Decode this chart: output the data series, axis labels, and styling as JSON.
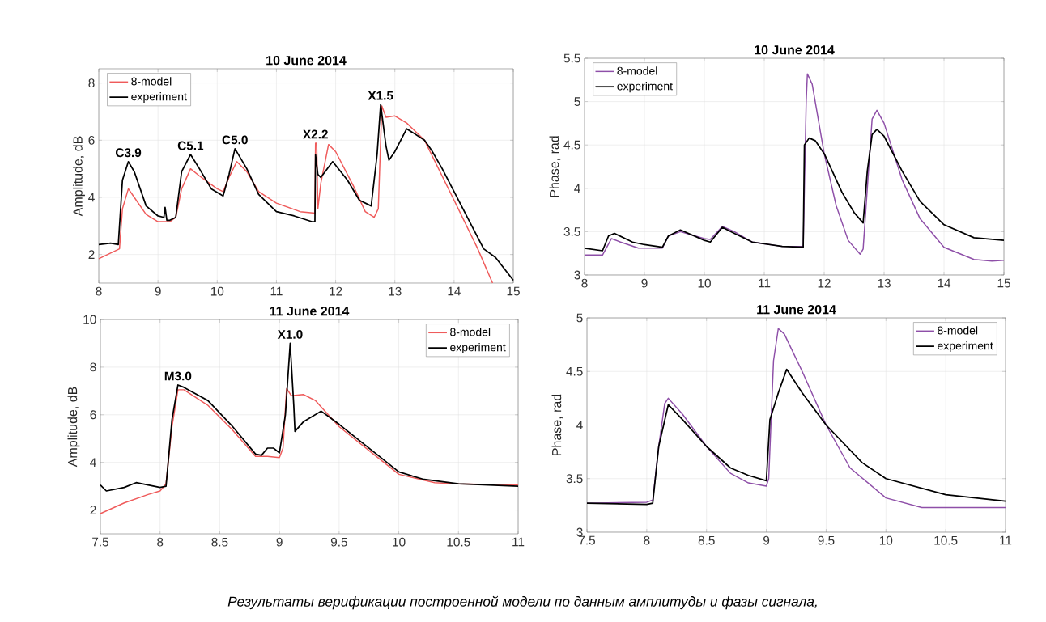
{
  "chart_data": [
    {
      "type": "line",
      "title": "10 June 2014",
      "ylabel": "Amplitude, dB",
      "xlim": [
        8,
        15
      ],
      "ylim": [
        1,
        8.5
      ],
      "xticks": [
        8,
        9,
        10,
        11,
        12,
        13,
        14,
        15
      ],
      "yticks": [
        2,
        4,
        6,
        8
      ],
      "grid": true,
      "legend": "top left",
      "series": [
        {
          "name": "8-model",
          "color": "#ef5b5b",
          "x": [
            8,
            8.35,
            8.4,
            8.5,
            8.6,
            8.8,
            9.0,
            9.2,
            9.3,
            9.4,
            9.55,
            9.7,
            10.0,
            10.1,
            10.2,
            10.33,
            10.5,
            10.7,
            11.0,
            11.4,
            11.65,
            11.66,
            11.68,
            11.7,
            11.75,
            11.88,
            12.0,
            12.3,
            12.5,
            12.65,
            12.72,
            12.78,
            12.85,
            13.0,
            13.2,
            13.5,
            14.0,
            14.4,
            14.65
          ],
          "values": [
            1.85,
            2.2,
            3.6,
            4.3,
            4.0,
            3.4,
            3.15,
            3.15,
            3.3,
            4.3,
            5.0,
            4.75,
            4.3,
            4.2,
            4.7,
            5.25,
            4.9,
            4.2,
            3.8,
            3.5,
            3.45,
            5.9,
            5.9,
            3.6,
            4.5,
            5.85,
            5.6,
            4.4,
            3.5,
            3.3,
            3.6,
            7.2,
            6.8,
            6.85,
            6.6,
            6.0,
            3.9,
            2.2,
            1.0
          ]
        },
        {
          "name": "experiment",
          "color": "#000000",
          "x": [
            8,
            8.2,
            8.33,
            8.4,
            8.5,
            8.6,
            8.8,
            9.0,
            9.1,
            9.12,
            9.15,
            9.2,
            9.3,
            9.4,
            9.55,
            9.7,
            9.9,
            10.1,
            10.2,
            10.3,
            10.5,
            10.7,
            11.0,
            11.3,
            11.6,
            11.65,
            11.66,
            11.7,
            11.75,
            11.95,
            12.2,
            12.4,
            12.6,
            12.7,
            12.76,
            12.85,
            12.9,
            13.0,
            13.2,
            13.5,
            13.62,
            13.8,
            14.0,
            14.3,
            14.5,
            14.7,
            15.0
          ],
          "values": [
            2.35,
            2.4,
            2.35,
            4.6,
            5.25,
            4.9,
            3.7,
            3.35,
            3.3,
            3.65,
            3.2,
            3.2,
            3.3,
            4.9,
            5.5,
            5.0,
            4.3,
            4.05,
            4.8,
            5.7,
            5.0,
            4.1,
            3.5,
            3.35,
            3.15,
            3.15,
            5.5,
            4.8,
            4.7,
            5.25,
            4.6,
            3.9,
            3.7,
            5.5,
            7.25,
            5.8,
            5.3,
            5.6,
            6.4,
            6.0,
            5.65,
            5.0,
            4.2,
            3.0,
            2.2,
            1.9,
            1.1
          ]
        }
      ],
      "annotations": [
        {
          "text": "C3.9",
          "x": 8.5,
          "y": 5.25
        },
        {
          "text": "C5.1",
          "x": 9.55,
          "y": 5.5
        },
        {
          "text": "C5.0",
          "x": 10.3,
          "y": 5.7
        },
        {
          "text": "X2.2",
          "x": 11.66,
          "y": 5.9
        },
        {
          "text": "X1.5",
          "x": 12.76,
          "y": 7.25
        },
        "Результаты верификации построенной модели по данным амплитуды и фазы сигнала,"
      ]
    },
    {
      "type": "line",
      "title": "10 June 2014",
      "ylabel": "Phase, rad",
      "xlim": [
        8,
        15
      ],
      "ylim": [
        3,
        5.5
      ],
      "xticks": [
        8,
        9,
        10,
        11,
        12,
        13,
        14,
        15
      ],
      "yticks": [
        3,
        3.5,
        4,
        4.5,
        5,
        5.5
      ],
      "grid": true,
      "legend": "top left",
      "series": [
        {
          "name": "8-model",
          "color": "#8e4fa8",
          "x": [
            8,
            8.3,
            8.45,
            8.6,
            8.9,
            9.3,
            9.4,
            9.6,
            10.0,
            10.1,
            10.3,
            10.5,
            10.8,
            11.3,
            11.65,
            11.7,
            11.72,
            11.8,
            12.0,
            12.2,
            12.4,
            12.6,
            12.65,
            12.72,
            12.8,
            12.88,
            13.0,
            13.3,
            13.6,
            14.0,
            14.5,
            14.8,
            15.0
          ],
          "values": [
            3.23,
            3.23,
            3.42,
            3.38,
            3.31,
            3.31,
            3.45,
            3.5,
            3.42,
            3.41,
            3.56,
            3.5,
            3.38,
            3.33,
            3.33,
            5.0,
            5.32,
            5.2,
            4.4,
            3.8,
            3.4,
            3.24,
            3.3,
            4.0,
            4.8,
            4.9,
            4.75,
            4.1,
            3.65,
            3.32,
            3.18,
            3.16,
            3.17
          ]
        },
        {
          "name": "experiment",
          "color": "#000000",
          "x": [
            8,
            8.3,
            8.4,
            8.5,
            8.8,
            9.0,
            9.3,
            9.4,
            9.6,
            10.0,
            10.1,
            10.3,
            10.5,
            10.8,
            11.3,
            11.65,
            11.67,
            11.75,
            11.85,
            12.0,
            12.3,
            12.5,
            12.65,
            12.72,
            12.8,
            12.88,
            13.0,
            13.3,
            13.6,
            14.0,
            14.5,
            15.0
          ],
          "values": [
            3.31,
            3.28,
            3.45,
            3.48,
            3.38,
            3.35,
            3.32,
            3.45,
            3.52,
            3.4,
            3.38,
            3.55,
            3.48,
            3.38,
            3.33,
            3.32,
            4.5,
            4.58,
            4.55,
            4.4,
            3.95,
            3.72,
            3.6,
            4.2,
            4.62,
            4.68,
            4.6,
            4.2,
            3.85,
            3.58,
            3.43,
            3.4
          ]
        }
      ]
    },
    {
      "type": "line",
      "title": "11 June 2014",
      "ylabel": "Amplitude, dB",
      "xlim": [
        7.5,
        11
      ],
      "ylim": [
        1,
        10
      ],
      "xticks": [
        7.5,
        8,
        8.5,
        9,
        9.5,
        10,
        10.5,
        11
      ],
      "yticks": [
        2,
        4,
        6,
        8,
        10
      ],
      "grid": true,
      "legend": "top right",
      "series": [
        {
          "name": "8-model",
          "color": "#ef5b5b",
          "x": [
            7.5,
            7.7,
            7.9,
            8.0,
            8.05,
            8.1,
            8.15,
            8.2,
            8.4,
            8.6,
            8.8,
            8.9,
            9.0,
            9.03,
            9.06,
            9.1,
            9.2,
            9.3,
            9.5,
            9.8,
            10.0,
            10.3,
            10.5,
            11.0
          ],
          "values": [
            1.85,
            2.3,
            2.65,
            2.8,
            3.1,
            5.5,
            7.05,
            7.05,
            6.4,
            5.4,
            4.25,
            4.25,
            4.2,
            4.6,
            7.1,
            6.8,
            6.85,
            6.6,
            5.5,
            4.3,
            3.5,
            3.15,
            3.1,
            3.05
          ]
        },
        {
          "name": "experiment",
          "color": "#000000",
          "x": [
            7.5,
            7.55,
            7.7,
            7.8,
            8.0,
            8.05,
            8.1,
            8.15,
            8.2,
            8.4,
            8.6,
            8.8,
            8.85,
            8.9,
            8.95,
            9.0,
            9.05,
            9.09,
            9.12,
            9.13,
            9.2,
            9.35,
            9.5,
            9.8,
            10.0,
            10.2,
            10.5,
            11.0
          ],
          "values": [
            3.05,
            2.8,
            2.95,
            3.15,
            2.95,
            3.0,
            5.8,
            7.25,
            7.15,
            6.6,
            5.55,
            4.35,
            4.3,
            4.6,
            4.6,
            4.4,
            6.0,
            9.0,
            6.4,
            5.3,
            5.7,
            6.15,
            5.6,
            4.4,
            3.6,
            3.3,
            3.1,
            3.0
          ]
        }
      ],
      "annotations": [
        {
          "text": "M3.0",
          "x": 8.15,
          "y": 7.25
        },
        {
          "text": "X1.0",
          "x": 9.09,
          "y": 9.0
        }
      ]
    },
    {
      "type": "line",
      "title": "11 June 2014",
      "ylabel": "Phase, rad",
      "xlim": [
        7.5,
        11
      ],
      "ylim": [
        3,
        5
      ],
      "xticks": [
        7.5,
        8,
        8.5,
        9,
        9.5,
        10,
        10.5,
        11
      ],
      "yticks": [
        3,
        3.5,
        4,
        4.5,
        5
      ],
      "grid": true,
      "legend": "top right",
      "series": [
        {
          "name": "8-model",
          "color": "#8e4fa8",
          "x": [
            7.5,
            8.0,
            8.05,
            8.1,
            8.15,
            8.18,
            8.3,
            8.5,
            8.7,
            8.85,
            9.0,
            9.02,
            9.06,
            9.1,
            9.15,
            9.3,
            9.5,
            9.7,
            10.0,
            10.3,
            11.0
          ],
          "values": [
            3.27,
            3.28,
            3.3,
            3.8,
            4.2,
            4.25,
            4.1,
            3.8,
            3.55,
            3.46,
            3.43,
            3.5,
            4.6,
            4.9,
            4.85,
            4.5,
            4.0,
            3.6,
            3.32,
            3.23,
            3.23
          ]
        },
        {
          "name": "experiment",
          "color": "#000000",
          "x": [
            7.5,
            8.0,
            8.05,
            8.1,
            8.18,
            8.3,
            8.5,
            8.7,
            8.85,
            9.0,
            9.03,
            9.1,
            9.17,
            9.3,
            9.5,
            9.8,
            10.0,
            10.5,
            11.0
          ],
          "values": [
            3.27,
            3.26,
            3.27,
            3.8,
            4.19,
            4.05,
            3.8,
            3.6,
            3.53,
            3.48,
            4.05,
            4.3,
            4.52,
            4.3,
            4.0,
            3.65,
            3.5,
            3.35,
            3.29
          ]
        }
      ]
    }
  ]
}
